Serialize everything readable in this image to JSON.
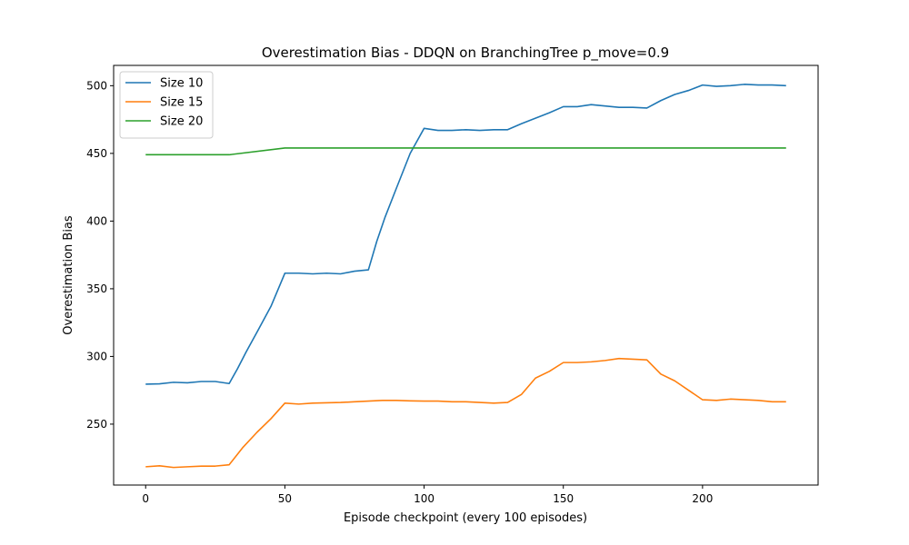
{
  "chart_data": {
    "type": "line",
    "title": "Overestimation Bias - DDQN on BranchingTree p_move=0.9",
    "xlabel": "Episode checkpoint (every 100 episodes)",
    "ylabel": "Overestimation Bias",
    "xlim": [
      -11.5,
      241.5
    ],
    "ylim": [
      205,
      515
    ],
    "xticks": [
      0,
      50,
      100,
      150,
      200
    ],
    "yticks": [
      250,
      300,
      350,
      400,
      450,
      500
    ],
    "legend_position": "upper-left",
    "grid": false,
    "series": [
      {
        "name": "Size 10",
        "color": "#1f77b4",
        "points": [
          [
            0,
            279.5
          ],
          [
            5,
            279.8
          ],
          [
            10,
            280.9
          ],
          [
            15,
            280.5
          ],
          [
            20,
            281.5
          ],
          [
            25,
            281.5
          ],
          [
            30,
            280
          ],
          [
            33,
            291
          ],
          [
            36,
            303
          ],
          [
            40,
            318
          ],
          [
            45,
            337
          ],
          [
            50,
            361.5
          ],
          [
            55,
            361.5
          ],
          [
            60,
            361.0
          ],
          [
            65,
            361.5
          ],
          [
            70,
            361.0
          ],
          [
            75,
            363.0
          ],
          [
            80,
            364.0
          ],
          [
            83,
            385
          ],
          [
            86,
            403
          ],
          [
            90,
            424
          ],
          [
            95,
            450
          ],
          [
            100,
            468.5
          ],
          [
            105,
            467.0
          ],
          [
            110,
            467.0
          ],
          [
            115,
            467.5
          ],
          [
            120,
            467.0
          ],
          [
            125,
            467.5
          ],
          [
            130,
            467.5
          ],
          [
            135,
            472
          ],
          [
            140,
            476
          ],
          [
            145,
            480
          ],
          [
            150,
            484.5
          ],
          [
            155,
            484.5
          ],
          [
            160,
            486.0
          ],
          [
            165,
            485.0
          ],
          [
            170,
            484.0
          ],
          [
            175,
            484.0
          ],
          [
            180,
            483.5
          ],
          [
            185,
            489
          ],
          [
            190,
            493.5
          ],
          [
            195,
            496.5
          ],
          [
            200,
            500.5
          ],
          [
            205,
            499.5
          ],
          [
            210,
            500.0
          ],
          [
            215,
            501.0
          ],
          [
            220,
            500.5
          ],
          [
            225,
            500.5
          ],
          [
            230,
            500.0
          ]
        ]
      },
      {
        "name": "Size 15",
        "color": "#ff7f0e",
        "points": [
          [
            0,
            218.5
          ],
          [
            5,
            219.2
          ],
          [
            10,
            218.0
          ],
          [
            15,
            218.5
          ],
          [
            20,
            219.0
          ],
          [
            25,
            219.0
          ],
          [
            30,
            220.0
          ],
          [
            35,
            233
          ],
          [
            40,
            244
          ],
          [
            45,
            254
          ],
          [
            50,
            265.5
          ],
          [
            55,
            264.8
          ],
          [
            60,
            265.5
          ],
          [
            65,
            265.8
          ],
          [
            70,
            266.0
          ],
          [
            75,
            266.5
          ],
          [
            80,
            267.0
          ],
          [
            85,
            267.5
          ],
          [
            90,
            267.5
          ],
          [
            95,
            267.2
          ],
          [
            100,
            267.0
          ],
          [
            105,
            267.0
          ],
          [
            110,
            266.5
          ],
          [
            115,
            266.5
          ],
          [
            120,
            266.0
          ],
          [
            125,
            265.5
          ],
          [
            130,
            266.0
          ],
          [
            135,
            272
          ],
          [
            140,
            284
          ],
          [
            145,
            289
          ],
          [
            150,
            295.5
          ],
          [
            155,
            295.5
          ],
          [
            160,
            296.0
          ],
          [
            165,
            297.0
          ],
          [
            170,
            298.5
          ],
          [
            175,
            298.0
          ],
          [
            180,
            297.5
          ],
          [
            185,
            287
          ],
          [
            190,
            282
          ],
          [
            195,
            275
          ],
          [
            200,
            268.0
          ],
          [
            205,
            267.5
          ],
          [
            210,
            268.5
          ],
          [
            215,
            268.0
          ],
          [
            220,
            267.5
          ],
          [
            225,
            266.5
          ],
          [
            230,
            266.5
          ]
        ]
      },
      {
        "name": "Size 20",
        "color": "#2ca02c",
        "points": [
          [
            0,
            449
          ],
          [
            30,
            449
          ],
          [
            50,
            454
          ],
          [
            230,
            454
          ]
        ]
      }
    ]
  }
}
